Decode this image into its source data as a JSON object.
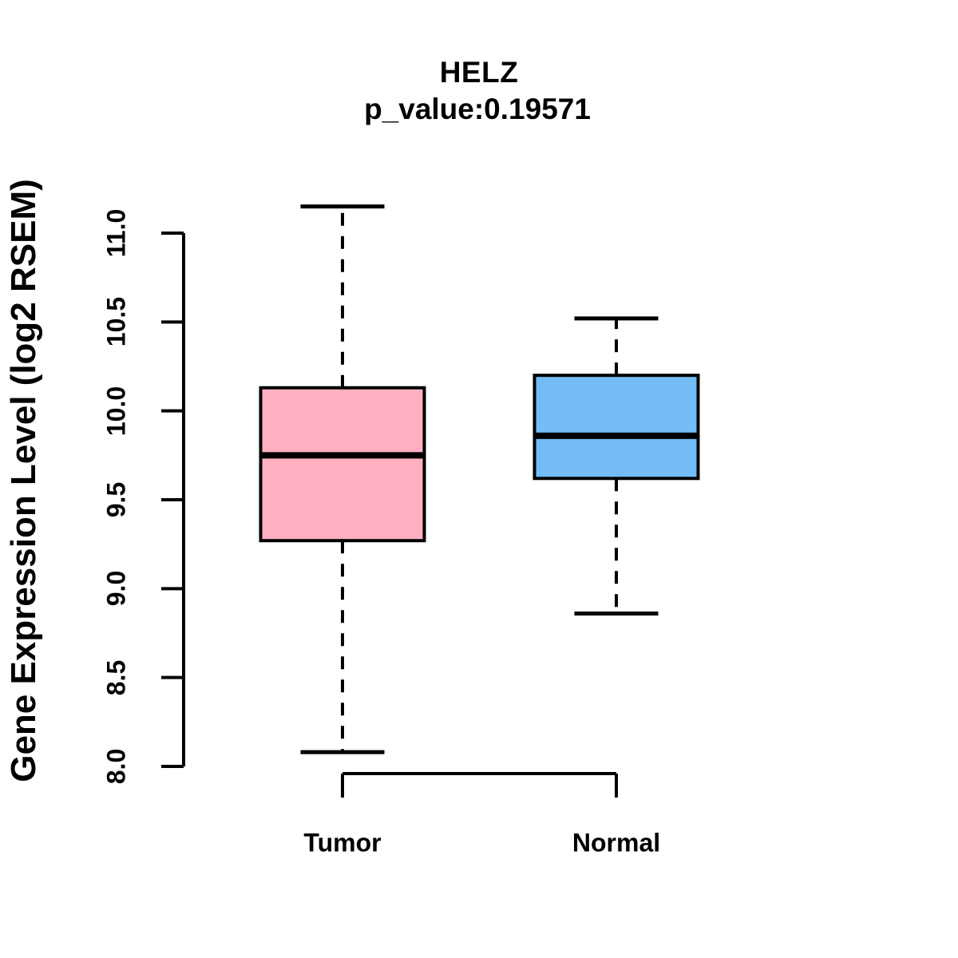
{
  "chart_data": {
    "type": "box",
    "title": "HELZ",
    "subtitle": "p_value:0.19571",
    "ylabel": "Gene Expression Level (log2 RSEM)",
    "xlabel": "",
    "ylim": [
      8.0,
      11.0
    ],
    "ytick_values": [
      8.0,
      8.5,
      9.0,
      9.5,
      10.0,
      10.5,
      11.0
    ],
    "ytick_labels": [
      "8.0",
      "8.5",
      "9.0",
      "9.5",
      "10.0",
      "10.5",
      "11.0"
    ],
    "grid": false,
    "legend_position": "none",
    "colors": {
      "stroke": "#000000",
      "background": "#ffffff",
      "tumor_fill": "#ffb0c1",
      "normal_fill": "#73bdf4"
    },
    "groups": [
      {
        "label": "Tumor",
        "fill": "#ffb0c1",
        "whisker_low": 8.08,
        "q1": 9.27,
        "median": 9.75,
        "q3": 10.13,
        "whisker_high": 11.15
      },
      {
        "label": "Normal",
        "fill": "#73bdf4",
        "whisker_low": 8.86,
        "q1": 9.62,
        "median": 9.86,
        "q3": 10.2,
        "whisker_high": 10.52
      }
    ]
  }
}
